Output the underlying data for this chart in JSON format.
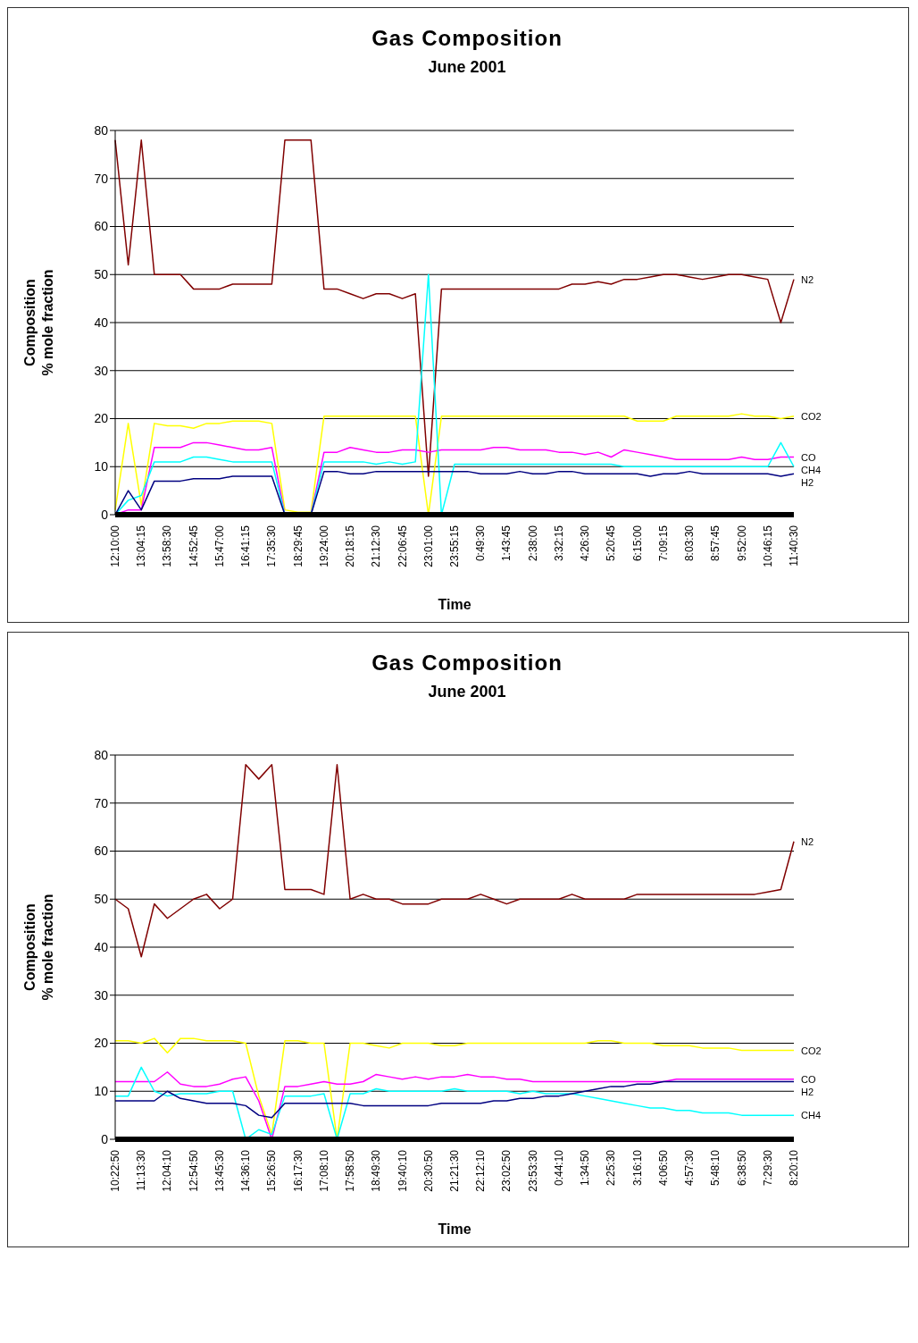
{
  "chart_data": [
    {
      "type": "line",
      "title": "Gas Composition",
      "subtitle": "June 2001",
      "xlabel": "Time",
      "ylabel": "Composition\n% mole fraction",
      "ylim": [
        0,
        80
      ],
      "yticks": [
        0,
        10,
        20,
        30,
        40,
        50,
        60,
        70,
        80
      ],
      "grid": "y",
      "categories": [
        "12:10:00",
        null,
        "13:04:15",
        null,
        "13:58:30",
        null,
        "14:52:45",
        null,
        "15:47:00",
        null,
        "16:41:15",
        null,
        "17:35:30",
        null,
        "18:29:45",
        null,
        "19:24:00",
        null,
        "20:18:15",
        null,
        "21:12:30",
        null,
        "22:06:45",
        null,
        "23:01:00",
        null,
        "23:55:15",
        null,
        "0:49:30",
        null,
        "1:43:45",
        null,
        "2:38:00",
        null,
        "3:32:15",
        null,
        "4:26:30",
        null,
        "5:20:45",
        null,
        "6:15:00",
        null,
        "7:09:15",
        null,
        "8:03:30",
        null,
        "8:57:45",
        null,
        "9:52:00",
        null,
        "10:46:15",
        null,
        "11:40:30"
      ],
      "series": [
        {
          "name": "N2",
          "color": "#800000",
          "values": [
            78,
            52,
            78,
            50,
            50,
            50,
            47,
            47,
            47,
            48,
            48,
            48,
            48,
            78,
            78,
            78,
            47,
            47,
            46,
            45,
            46,
            46,
            45,
            46,
            8,
            47,
            47,
            47,
            47,
            47,
            47,
            47,
            47,
            47,
            47,
            48,
            48,
            48.5,
            48,
            49,
            49,
            49.5,
            50,
            50,
            49.5,
            49,
            49.5,
            50,
            50,
            49.5,
            49,
            40,
            49
          ]
        },
        {
          "name": "CO2",
          "color": "#ffff00",
          "values": [
            1,
            19,
            2,
            19,
            18.5,
            18.5,
            18,
            19,
            19,
            19.5,
            19.5,
            19.5,
            19,
            1,
            0.5,
            0.5,
            20.5,
            20.5,
            20.5,
            20.5,
            20.5,
            20.5,
            20.5,
            20.5,
            0,
            20.5,
            20.5,
            20.5,
            20.5,
            20.5,
            20.5,
            20.5,
            20.5,
            20.5,
            20.5,
            20.5,
            20.5,
            20.5,
            20.5,
            20.5,
            19.5,
            19.5,
            19.5,
            20.5,
            20.5,
            20.5,
            20.5,
            20.5,
            21,
            20.5,
            20.5,
            20,
            20.5
          ]
        },
        {
          "name": "CO",
          "color": "#ff00ff",
          "values": [
            0,
            1,
            1,
            14,
            14,
            14,
            15,
            15,
            14.5,
            14,
            13.5,
            13.5,
            14,
            0,
            0,
            0,
            13,
            13,
            14,
            13.5,
            13,
            13,
            13.5,
            13.5,
            13,
            13.5,
            13.5,
            13.5,
            13.5,
            14,
            14,
            13.5,
            13.5,
            13.5,
            13,
            13,
            12.5,
            13,
            12,
            13.5,
            13,
            12.5,
            12,
            11.5,
            11.5,
            11.5,
            11.5,
            11.5,
            12,
            11.5,
            11.5,
            12,
            12
          ]
        },
        {
          "name": "CH4",
          "color": "#00ffff",
          "values": [
            0,
            3,
            4,
            11,
            11,
            11,
            12,
            12,
            11.5,
            11,
            11,
            11,
            11,
            0,
            0,
            0,
            11,
            11,
            11,
            11,
            10.5,
            11,
            10.5,
            11,
            50,
            0,
            10.5,
            10.5,
            10.5,
            10.5,
            10.5,
            10.5,
            10.5,
            10.5,
            10.5,
            10.5,
            10.5,
            10.5,
            10.5,
            10,
            10,
            10,
            10,
            10,
            10,
            10,
            10,
            10,
            10,
            10,
            10,
            15,
            10
          ]
        },
        {
          "name": "H2",
          "color": "#000080",
          "values": [
            0,
            5,
            1,
            7,
            7,
            7,
            7.5,
            7.5,
            7.5,
            8,
            8,
            8,
            8,
            0,
            0,
            0,
            9,
            9,
            8.5,
            8.5,
            9,
            9,
            9,
            9,
            9,
            9,
            9,
            9,
            8.5,
            8.5,
            8.5,
            9,
            8.5,
            8.5,
            9,
            9,
            8.5,
            8.5,
            8.5,
            8.5,
            8.5,
            8,
            8.5,
            8.5,
            9,
            8.5,
            8.5,
            8.5,
            8.5,
            8.5,
            8.5,
            8,
            8.5
          ]
        }
      ]
    },
    {
      "type": "line",
      "title": "Gas Composition",
      "subtitle": "June 2001",
      "xlabel": "Time",
      "ylabel": "Composition\n% mole fraction",
      "ylim": [
        0,
        80
      ],
      "yticks": [
        0,
        10,
        20,
        30,
        40,
        50,
        60,
        70,
        80
      ],
      "grid": "y",
      "categories": [
        "10:22:50",
        null,
        "11:13:30",
        null,
        "12:04:10",
        null,
        "12:54:50",
        null,
        "13:45:30",
        null,
        "14:36:10",
        null,
        "15:26:50",
        null,
        "16:17:30",
        null,
        "17:08:10",
        null,
        "17:58:50",
        null,
        "18:49:30",
        null,
        "19:40:10",
        null,
        "20:30:50",
        null,
        "21:21:30",
        null,
        "22:12:10",
        null,
        "23:02:50",
        null,
        "23:53:30",
        null,
        "0:44:10",
        null,
        "1:34:50",
        null,
        "2:25:30",
        null,
        "3:16:10",
        null,
        "4:06:50",
        null,
        "4:57:30",
        null,
        "5:48:10",
        null,
        "6:38:50",
        null,
        "7:29:30",
        null,
        "8:20:10"
      ],
      "series": [
        {
          "name": "N2",
          "color": "#800000",
          "values": [
            50,
            48,
            38,
            49,
            46,
            48,
            50,
            51,
            48,
            50,
            78,
            75,
            78,
            52,
            52,
            52,
            51,
            78,
            50,
            51,
            50,
            50,
            49,
            49,
            49,
            50,
            50,
            50,
            51,
            50,
            49,
            50,
            50,
            50,
            50,
            51,
            50,
            50,
            50,
            50,
            51,
            51,
            51,
            51,
            51,
            51,
            51,
            51,
            51,
            51,
            51.5,
            52,
            62
          ]
        },
        {
          "name": "CO2",
          "color": "#ffff00",
          "values": [
            20.5,
            20.5,
            20,
            21,
            18,
            21,
            21,
            20.5,
            20.5,
            20.5,
            20,
            9,
            1,
            20.5,
            20.5,
            20,
            20,
            0,
            20,
            20,
            19.5,
            19,
            20,
            20,
            20,
            19.5,
            19.5,
            20,
            20,
            20,
            20,
            20,
            20,
            20,
            20,
            20,
            20,
            20.5,
            20.5,
            20,
            20,
            20,
            19.5,
            19.5,
            19.5,
            19,
            19,
            19,
            18.5,
            18.5,
            18.5,
            18.5,
            18.5
          ]
        },
        {
          "name": "CO",
          "color": "#ff00ff",
          "values": [
            12,
            12,
            12,
            12,
            14,
            11.5,
            11,
            11,
            11.5,
            12.5,
            13,
            8,
            0,
            11,
            11,
            11.5,
            12,
            11.5,
            11.5,
            12,
            13.5,
            13,
            12.5,
            13,
            12.5,
            13,
            13,
            13.5,
            13,
            13,
            12.5,
            12.5,
            12,
            12,
            12,
            12,
            12,
            12,
            12,
            12,
            12,
            12,
            12,
            12.5,
            12.5,
            12.5,
            12.5,
            12.5,
            12.5,
            12.5,
            12.5,
            12.5,
            12.5
          ]
        },
        {
          "name": "CH4",
          "color": "#00ffff",
          "values": [
            9,
            9,
            15,
            10,
            9,
            9.5,
            9.5,
            9.5,
            10,
            10,
            0,
            2,
            1,
            9,
            9,
            9,
            9.5,
            0,
            9.5,
            9.5,
            10.5,
            10,
            10,
            10,
            10,
            10,
            10.5,
            10,
            10,
            10,
            10,
            9.5,
            10,
            9.5,
            9.5,
            9.5,
            9,
            8.5,
            8,
            7.5,
            7,
            6.5,
            6.5,
            6,
            6,
            5.5,
            5.5,
            5.5,
            5,
            5,
            5,
            5,
            5
          ]
        },
        {
          "name": "H2",
          "color": "#000080",
          "values": [
            8,
            8,
            8,
            8,
            10,
            8.5,
            8,
            7.5,
            7.5,
            7.5,
            7,
            5,
            4.5,
            7.5,
            7.5,
            7.5,
            7.5,
            7.5,
            7.5,
            7,
            7,
            7,
            7,
            7,
            7,
            7.5,
            7.5,
            7.5,
            7.5,
            8,
            8,
            8.5,
            8.5,
            9,
            9,
            9.5,
            10,
            10.5,
            11,
            11,
            11.5,
            11.5,
            12,
            12,
            12,
            12,
            12,
            12,
            12,
            12,
            12,
            12,
            12
          ]
        }
      ]
    }
  ]
}
